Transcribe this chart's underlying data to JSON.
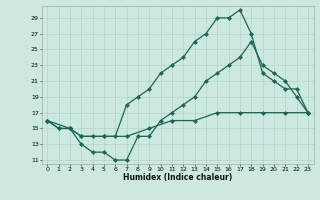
{
  "title": "",
  "xlabel": "Humidex (Indice chaleur)",
  "bg_color": "#cce8e0",
  "line_color": "#1a6655",
  "xlim": [
    -0.5,
    23.5
  ],
  "ylim": [
    10.5,
    30.5
  ],
  "yticks": [
    11,
    13,
    15,
    17,
    19,
    21,
    23,
    25,
    27,
    29
  ],
  "xticks": [
    0,
    1,
    2,
    3,
    4,
    5,
    6,
    7,
    8,
    9,
    10,
    11,
    12,
    13,
    14,
    15,
    16,
    17,
    18,
    19,
    20,
    21,
    22,
    23
  ],
  "line1_x": [
    0,
    1,
    2,
    3,
    4,
    5,
    6,
    7,
    8,
    9,
    10,
    11,
    12,
    13,
    14,
    15,
    16,
    17,
    18,
    19,
    20,
    21,
    22,
    23
  ],
  "line1_y": [
    16,
    15,
    15,
    13,
    12,
    12,
    11,
    11,
    14,
    14,
    16,
    17,
    18,
    19,
    21,
    22,
    23,
    24,
    26,
    23,
    22,
    21,
    19,
    17
  ],
  "line2_x": [
    0,
    1,
    2,
    3,
    4,
    5,
    6,
    7,
    8,
    9,
    10,
    11,
    12,
    13,
    14,
    15,
    16,
    17,
    18,
    19,
    20,
    21,
    22,
    23
  ],
  "line2_y": [
    16,
    15,
    15,
    14,
    14,
    14,
    14,
    18,
    19,
    20,
    22,
    23,
    24,
    26,
    27,
    29,
    29,
    30,
    27,
    22,
    21,
    20,
    20,
    17
  ],
  "line3_x": [
    0,
    2,
    3,
    5,
    7,
    9,
    11,
    13,
    15,
    17,
    19,
    21,
    23
  ],
  "line3_y": [
    16,
    15,
    14,
    14,
    14,
    15,
    16,
    16,
    17,
    17,
    17,
    17,
    17
  ],
  "grid_color": "#aacfc8",
  "markersize": 2.5,
  "linewidth": 0.9
}
